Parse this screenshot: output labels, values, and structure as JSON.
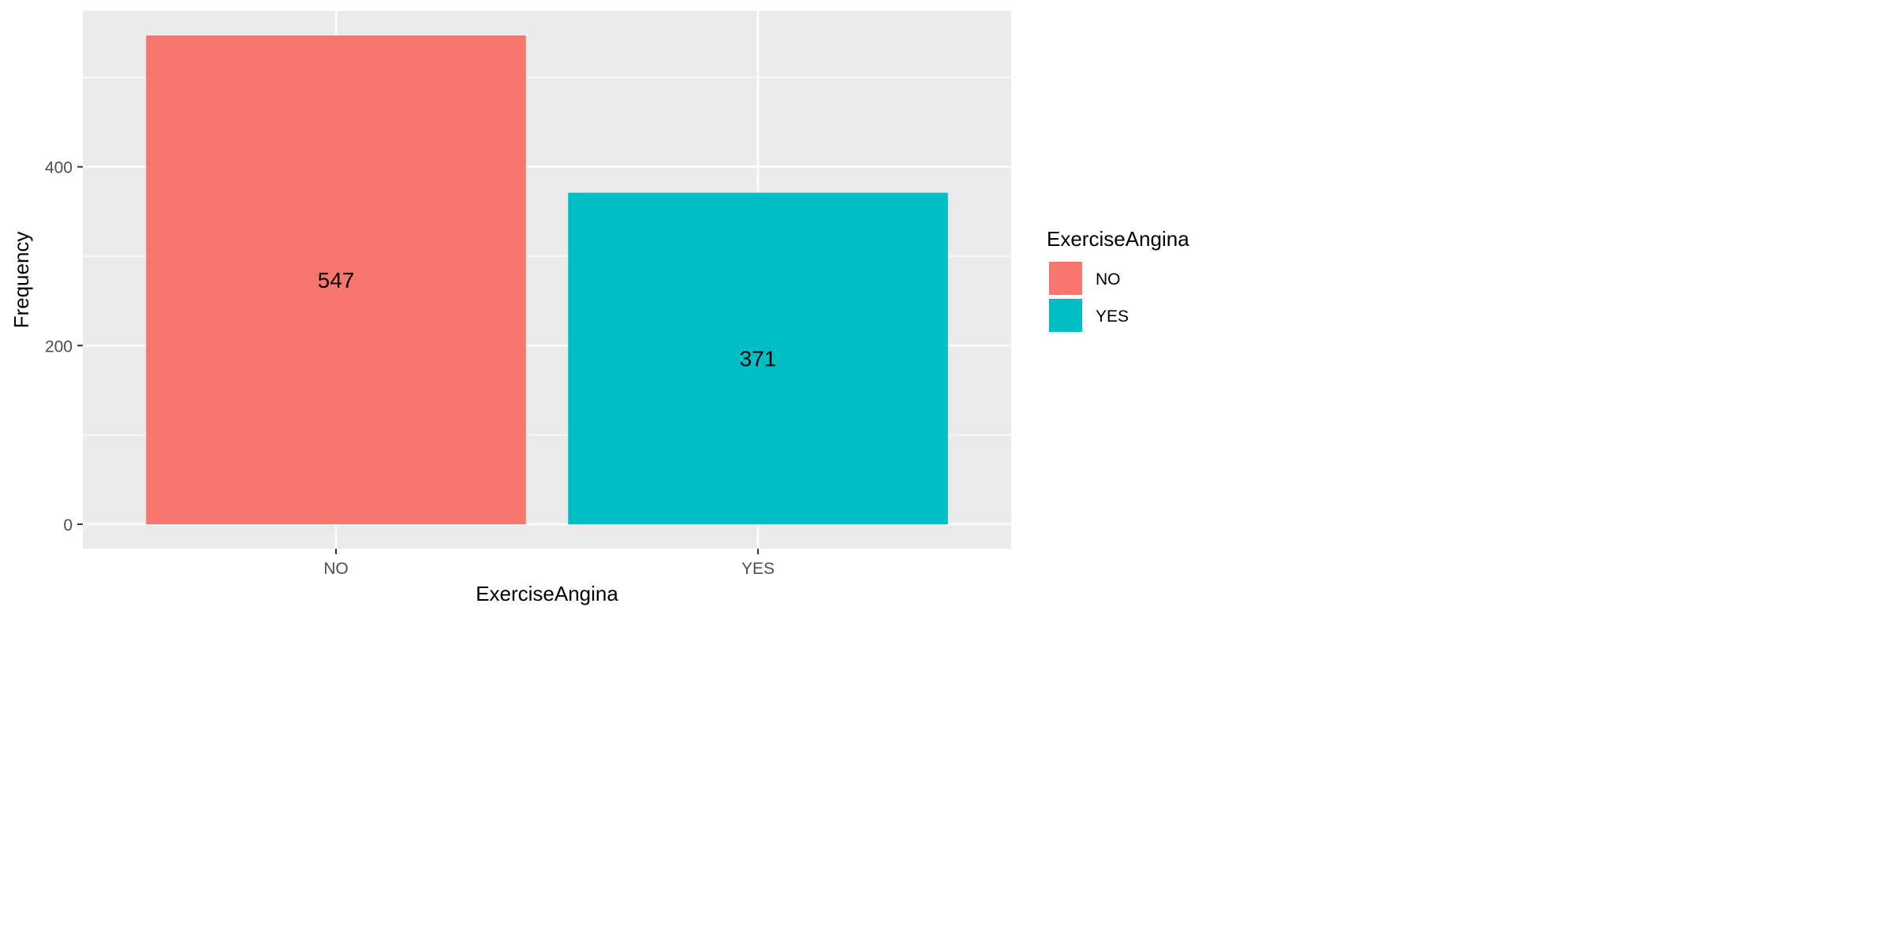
{
  "chart_data": {
    "type": "bar",
    "categories": [
      "NO",
      "YES"
    ],
    "values": [
      547,
      371
    ],
    "value_labels": [
      "547",
      "371"
    ],
    "colors": [
      "#F8766D",
      "#00BFC4"
    ],
    "xlabel": "ExerciseAngina",
    "ylabel": "Frequency",
    "y_ticks": [
      0,
      200,
      400
    ],
    "y_tick_labels": [
      "0",
      "200",
      "400"
    ],
    "ylim": [
      -27.35,
      574.35
    ],
    "grid": true,
    "panel_background": "#EBEBEB",
    "legend": {
      "title": "ExerciseAngina",
      "placement": "right",
      "items": [
        {
          "label": "NO",
          "color": "#F8766D"
        },
        {
          "label": "YES",
          "color": "#00BFC4"
        }
      ]
    }
  }
}
